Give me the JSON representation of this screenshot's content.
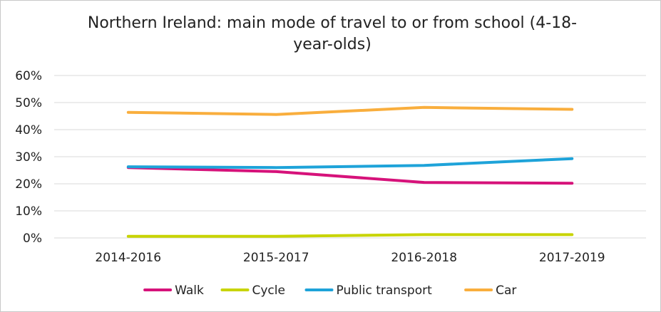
{
  "chart_data": {
    "type": "line",
    "title": "Northern Ireland: main mode of travel to or from school (4-18-year-olds)",
    "title_lines": [
      "Northern Ireland: main mode of travel to or from school (4-18-",
      "year-olds)"
    ],
    "xlabel": "",
    "ylabel": "",
    "categories": [
      "2014-2016",
      "2015-2017",
      "2016-2018",
      "2017-2019"
    ],
    "ylim": [
      0,
      60
    ],
    "yticks": [
      0,
      10,
      20,
      30,
      40,
      50,
      60
    ],
    "ytick_labels": [
      "0%",
      "10%",
      "20%",
      "30%",
      "40%",
      "50%",
      "60%"
    ],
    "grid": true,
    "legend_position": "bottom",
    "series": [
      {
        "name": "Walk",
        "color": "#d6127a",
        "values": [
          26,
          24.5,
          20.5,
          20.2
        ]
      },
      {
        "name": "Cycle",
        "color": "#c8d400",
        "values": [
          0.6,
          0.6,
          1.2,
          1.2
        ]
      },
      {
        "name": "Public transport",
        "color": "#1ea3d9",
        "values": [
          26.3,
          26,
          26.8,
          29.3
        ]
      },
      {
        "name": "Car",
        "color": "#f9ae3d",
        "values": [
          46.4,
          45.6,
          48.2,
          47.5
        ]
      }
    ]
  }
}
